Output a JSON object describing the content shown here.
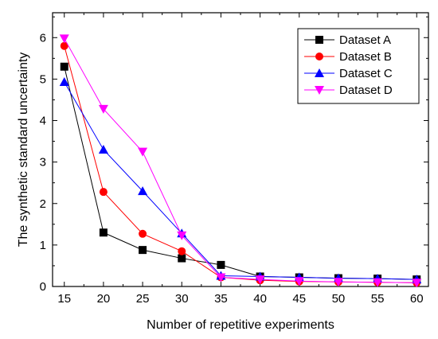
{
  "chart_data": {
    "type": "line",
    "title": "",
    "xlabel": "Number of repetitive experiments",
    "ylabel": "The synthetic standard uncertainty",
    "x": [
      15,
      20,
      25,
      30,
      35,
      40,
      45,
      50,
      55,
      60
    ],
    "xlim": [
      13.5,
      61.5
    ],
    "ylim": [
      0,
      6.6
    ],
    "xticks": [
      15,
      20,
      25,
      30,
      35,
      40,
      45,
      50,
      55,
      60
    ],
    "yticks": [
      0,
      1,
      2,
      3,
      4,
      5,
      6
    ],
    "grid": false,
    "legend_position": "top-right",
    "series": [
      {
        "name": "Dataset A",
        "color": "#000000",
        "marker": "square",
        "values": [
          5.3,
          1.3,
          0.88,
          0.68,
          0.52,
          0.24,
          0.22,
          0.2,
          0.19,
          0.17
        ]
      },
      {
        "name": "Dataset B",
        "color": "#ff0000",
        "marker": "circle",
        "values": [
          5.8,
          2.28,
          1.27,
          0.85,
          0.22,
          0.15,
          0.12,
          0.11,
          0.1,
          0.09
        ]
      },
      {
        "name": "Dataset C",
        "color": "#0000ff",
        "marker": "triangle-up",
        "values": [
          4.93,
          3.3,
          2.3,
          1.28,
          0.26,
          0.24,
          0.22,
          0.2,
          0.19,
          0.17
        ]
      },
      {
        "name": "Dataset D",
        "color": "#ff00ff",
        "marker": "triangle-down",
        "values": [
          5.98,
          4.28,
          3.25,
          1.23,
          0.22,
          0.17,
          0.13,
          0.11,
          0.1,
          0.09
        ]
      }
    ]
  }
}
